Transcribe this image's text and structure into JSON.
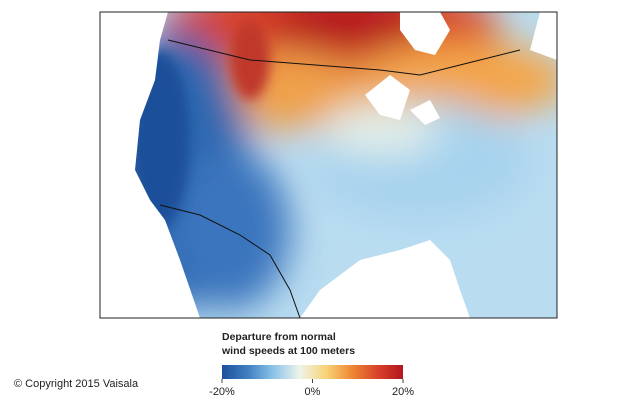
{
  "map": {
    "legend": {
      "title": [
        "Departure from normal",
        "wind speeds at 100 meters"
      ],
      "range": [
        -20,
        20
      ],
      "ticks": [
        {
          "value": -20,
          "label": "-20%"
        },
        {
          "value": 0,
          "label": "0%"
        },
        {
          "value": 20,
          "label": "20%"
        }
      ],
      "colors": [
        "#1d4f9a",
        "#3f7fc2",
        "#8cc4e8",
        "#eef3ea",
        "#f8d57a",
        "#ef8a35",
        "#d9432a",
        "#b3151f"
      ]
    },
    "copyright": "© Copyright 2015 Vaisala"
  }
}
